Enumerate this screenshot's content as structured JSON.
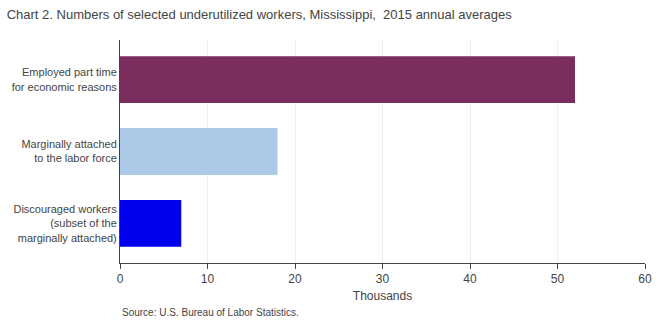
{
  "chart_data": {
    "type": "bar",
    "orientation": "horizontal",
    "title": "Chart 2. Numbers of selected underutilized workers, Mississippi,  2015 annual averages",
    "categories": [
      "Discouraged workers\n(subset of the\nmarginally attached)",
      "Marginally attached\nto the labor force",
      "Employed part time\nfor economic reasons"
    ],
    "values": [
      7,
      18,
      52
    ],
    "colors": [
      "#0000ee",
      "#adc9e8",
      "#7b2d5e"
    ],
    "xlabel": "Thousands",
    "xlim": [
      0,
      60
    ],
    "xticks": [
      0,
      10,
      20,
      30,
      40,
      50,
      60
    ],
    "grid": true,
    "annotations": [
      "Source: U.S. Bureau of Labor Statistics."
    ]
  }
}
